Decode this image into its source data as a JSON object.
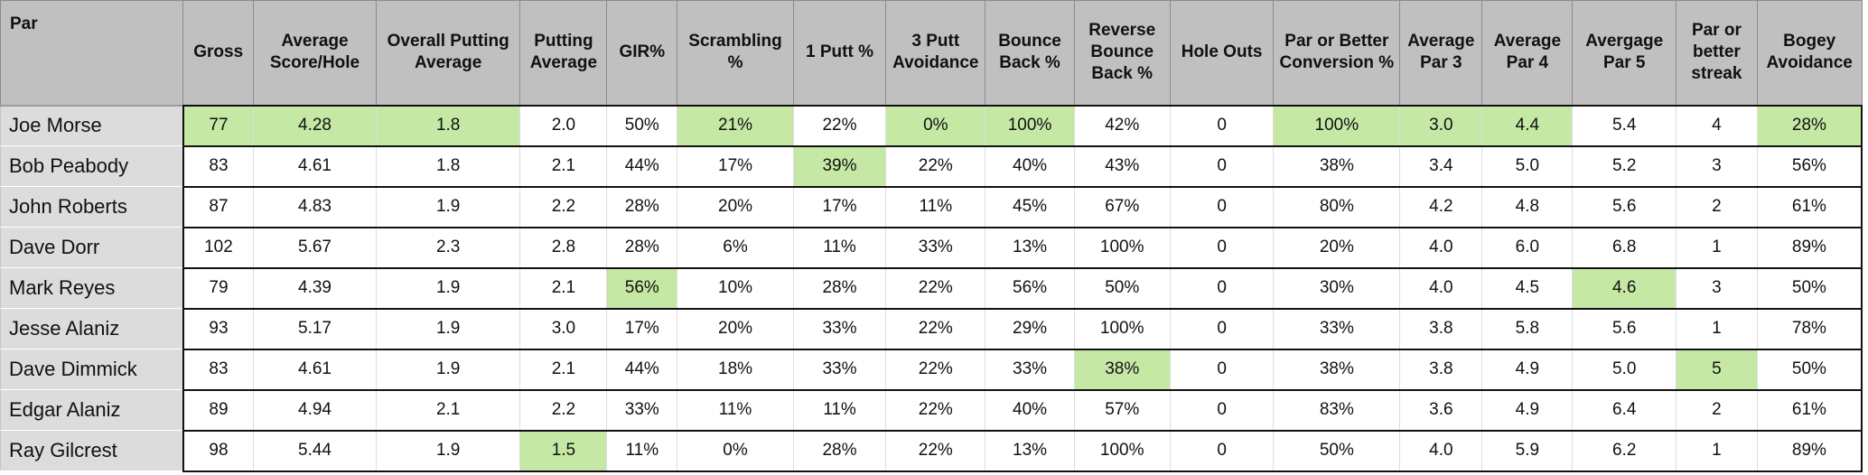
{
  "table": {
    "corner_label": "Par",
    "columns": [
      "Gross",
      "Average Score/Hole",
      "Overall Putting Average",
      "Putting Average",
      "GIR%",
      "Scrambling %",
      "1 Putt %",
      "3 Putt Avoidance",
      "Bounce Back %",
      "Reverse Bounce Back %",
      "Hole Outs",
      "Par or Better Conversion %",
      "Average Par 3",
      "Average Par 4",
      "Avergage Par 5",
      "Par or better streak",
      "Bogey Avoidance"
    ],
    "column_widths": [
      76,
      133,
      156,
      94,
      76,
      126,
      100,
      108,
      96,
      104,
      112,
      137,
      89,
      98,
      112,
      88,
      113
    ],
    "highlight_color": "#c5e8a5",
    "rows": [
      {
        "name": "Joe Morse",
        "cells": [
          "77",
          "4.28",
          "1.8",
          "2.0",
          "50%",
          "21%",
          "22%",
          "0%",
          "100%",
          "42%",
          "0",
          "100%",
          "3.0",
          "4.4",
          "5.4",
          "4",
          "28%"
        ],
        "best": [
          0,
          1,
          2,
          5,
          7,
          8,
          11,
          12,
          13,
          16
        ]
      },
      {
        "name": "Bob Peabody",
        "cells": [
          "83",
          "4.61",
          "1.8",
          "2.1",
          "44%",
          "17%",
          "39%",
          "22%",
          "40%",
          "43%",
          "0",
          "38%",
          "3.4",
          "5.0",
          "5.2",
          "3",
          "56%"
        ],
        "best": [
          6
        ]
      },
      {
        "name": "John Roberts",
        "cells": [
          "87",
          "4.83",
          "1.9",
          "2.2",
          "28%",
          "20%",
          "17%",
          "11%",
          "45%",
          "67%",
          "0",
          "80%",
          "4.2",
          "4.8",
          "5.6",
          "2",
          "61%"
        ],
        "best": []
      },
      {
        "name": "Dave Dorr",
        "cells": [
          "102",
          "5.67",
          "2.3",
          "2.8",
          "28%",
          "6%",
          "11%",
          "33%",
          "13%",
          "100%",
          "0",
          "20%",
          "4.0",
          "6.0",
          "6.8",
          "1",
          "89%"
        ],
        "best": []
      },
      {
        "name": "Mark Reyes",
        "cells": [
          "79",
          "4.39",
          "1.9",
          "2.1",
          "56%",
          "10%",
          "28%",
          "22%",
          "56%",
          "50%",
          "0",
          "30%",
          "4.0",
          "4.5",
          "4.6",
          "3",
          "50%"
        ],
        "best": [
          4,
          14
        ]
      },
      {
        "name": "Jesse Alaniz",
        "cells": [
          "93",
          "5.17",
          "1.9",
          "3.0",
          "17%",
          "20%",
          "33%",
          "22%",
          "29%",
          "100%",
          "0",
          "33%",
          "3.8",
          "5.8",
          "5.6",
          "1",
          "78%"
        ],
        "best": []
      },
      {
        "name": "Dave Dimmick",
        "cells": [
          "83",
          "4.61",
          "1.9",
          "2.1",
          "44%",
          "18%",
          "33%",
          "22%",
          "33%",
          "38%",
          "0",
          "38%",
          "3.8",
          "4.9",
          "5.0",
          "5",
          "50%"
        ],
        "best": [
          9,
          15
        ]
      },
      {
        "name": "Edgar Alaniz",
        "cells": [
          "89",
          "4.94",
          "2.1",
          "2.2",
          "33%",
          "11%",
          "11%",
          "22%",
          "40%",
          "57%",
          "0",
          "83%",
          "3.6",
          "4.9",
          "6.4",
          "2",
          "61%"
        ],
        "best": []
      },
      {
        "name": "Ray Gilcrest",
        "cells": [
          "98",
          "5.44",
          "1.9",
          "1.5",
          "11%",
          "0%",
          "28%",
          "22%",
          "13%",
          "100%",
          "0",
          "50%",
          "4.0",
          "5.9",
          "6.2",
          "1",
          "89%"
        ],
        "best": [
          3
        ]
      }
    ]
  }
}
